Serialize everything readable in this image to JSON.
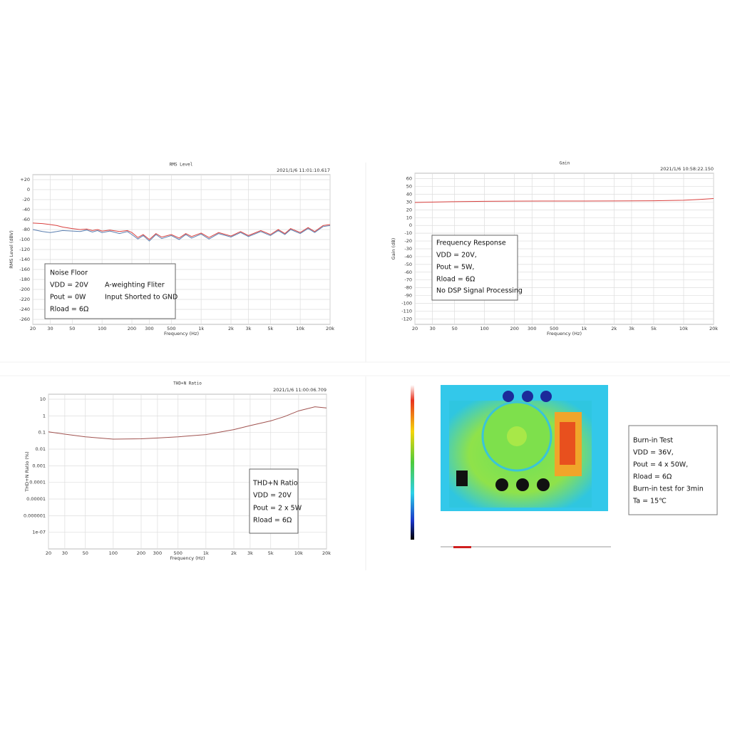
{
  "chart_data": [
    {
      "type": "line",
      "title": "RMS Level",
      "timestamp": "2021/1/6 11:01:10.617",
      "ylabel": "RMS Level (dBV)",
      "xlabel": "Frequency (Hz)",
      "xlog": true,
      "xlim": [
        20,
        20000
      ],
      "xticks": [
        20,
        30,
        50,
        100,
        200,
        300,
        500,
        {
          "value": 1000,
          "label": "1k"
        },
        {
          "value": 2000,
          "label": "2k"
        },
        {
          "value": 3000,
          "label": "3k"
        },
        {
          "value": 5000,
          "label": "5k"
        },
        {
          "value": 10000,
          "label": "10k"
        },
        {
          "value": 20000,
          "label": "20k"
        }
      ],
      "ylim": [
        -270,
        30
      ],
      "yticks": [
        {
          "value": 20,
          "label": "+20"
        },
        0,
        -20,
        -40,
        -60,
        -80,
        -100,
        -120,
        -140,
        -160,
        -180,
        -200,
        -220,
        -240,
        -260
      ],
      "grid": true,
      "x": [
        20,
        25,
        30,
        35,
        40,
        50,
        60,
        70,
        80,
        90,
        100,
        120,
        150,
        180,
        200,
        230,
        260,
        300,
        350,
        400,
        500,
        600,
        700,
        800,
        1000,
        1200,
        1500,
        2000,
        2500,
        3000,
        4000,
        5000,
        6000,
        7000,
        8000,
        10000,
        12000,
        14000,
        17000,
        20000
      ],
      "series": [
        {
          "color": "#d9413f",
          "values": [
            -67,
            -68,
            -70,
            -72,
            -75,
            -78,
            -80,
            -79,
            -82,
            -80,
            -83,
            -81,
            -84,
            -82,
            -86,
            -96,
            -90,
            -100,
            -88,
            -95,
            -90,
            -97,
            -88,
            -94,
            -87,
            -96,
            -86,
            -93,
            -84,
            -92,
            -82,
            -90,
            -80,
            -88,
            -78,
            -86,
            -76,
            -84,
            -72,
            -70
          ]
        },
        {
          "color": "#5b7fb0",
          "values": [
            -80,
            -84,
            -86,
            -84,
            -82,
            -83,
            -84,
            -81,
            -85,
            -82,
            -86,
            -83,
            -88,
            -84,
            -90,
            -99,
            -92,
            -103,
            -90,
            -98,
            -92,
            -100,
            -90,
            -97,
            -89,
            -99,
            -88,
            -95,
            -86,
            -94,
            -84,
            -92,
            -82,
            -90,
            -80,
            -88,
            -78,
            -86,
            -74,
            -72
          ]
        }
      ],
      "annotation": [
        [
          "Noise Floor"
        ],
        [
          "VDD = 20V",
          "A-weighting Fliter"
        ],
        [
          "Pout = 0W",
          "Input Shorted to GND"
        ],
        [
          "Rload = 6Ω"
        ]
      ]
    },
    {
      "type": "line",
      "title": "Gain",
      "timestamp": "2021/1/6 10:58:22.150",
      "ylabel": "Gain (dB)",
      "xlabel": "Frequency (Hz)",
      "xlog": true,
      "xlim": [
        20,
        20000
      ],
      "xticks": [
        20,
        30,
        50,
        100,
        200,
        300,
        500,
        {
          "value": 1000,
          "label": "1k"
        },
        {
          "value": 2000,
          "label": "2k"
        },
        {
          "value": 3000,
          "label": "3k"
        },
        {
          "value": 5000,
          "label": "5k"
        },
        {
          "value": 10000,
          "label": "10k"
        },
        {
          "value": 20000,
          "label": "20k"
        }
      ],
      "ylim": [
        -127,
        67
      ],
      "yticks": [
        60,
        50,
        40,
        30,
        20,
        10,
        0,
        -10,
        -20,
        -30,
        -40,
        -50,
        -60,
        -70,
        -80,
        -90,
        -100,
        -110,
        -120
      ],
      "grid": true,
      "x": [
        20,
        50,
        100,
        200,
        500,
        1000,
        2000,
        5000,
        10000,
        15000,
        20000
      ],
      "series": [
        {
          "color": "#d9413f",
          "values": [
            29.5,
            30.5,
            31,
            31.2,
            31.3,
            31.3,
            31.4,
            31.6,
            32.3,
            33.5,
            34.5
          ]
        }
      ],
      "annotation": [
        [
          "Frequency Response"
        ],
        [
          "VDD = 20V,"
        ],
        [
          "Pout = 5W,"
        ],
        [
          "Rload = 6Ω"
        ],
        [
          "No DSP Signal Processing"
        ]
      ]
    },
    {
      "type": "line",
      "title": "THD+N Ratio",
      "timestamp": "2021/1/6 11:00:06.709",
      "ylabel": "THD+N Ratio (%)",
      "xlabel": "Frequency (Hz)",
      "xlog": true,
      "xlim": [
        20,
        20000
      ],
      "ylog": true,
      "xticks": [
        20,
        30,
        50,
        100,
        200,
        300,
        500,
        {
          "value": 1000,
          "label": "1k"
        },
        {
          "value": 2000,
          "label": "2k"
        },
        {
          "value": 3000,
          "label": "3k"
        },
        {
          "value": 5000,
          "label": "5k"
        },
        {
          "value": 10000,
          "label": "10k"
        },
        {
          "value": 20000,
          "label": "20k"
        }
      ],
      "ylim": [
        1e-08,
        20
      ],
      "yticks": [
        10,
        1,
        0.1,
        0.01,
        0.001,
        0.0001,
        1e-05,
        1e-06,
        {
          "value": 1e-07,
          "label": "1e-07"
        }
      ],
      "grid": true,
      "x": [
        20,
        30,
        50,
        100,
        200,
        300,
        500,
        1000,
        2000,
        3000,
        5000,
        7000,
        10000,
        15000,
        20000
      ],
      "series": [
        {
          "color": "#a0524f",
          "values": [
            0.11,
            0.08,
            0.055,
            0.04,
            0.042,
            0.047,
            0.055,
            0.075,
            0.15,
            0.26,
            0.5,
            0.9,
            2,
            3.5,
            3
          ]
        }
      ],
      "annotation": [
        [
          "THD+N Ratio"
        ],
        [
          "VDD = 20V"
        ],
        [
          "Pout = 2 x 5W"
        ],
        [
          "Rload = 6Ω"
        ]
      ]
    }
  ],
  "burn_in": {
    "lines": [
      "Burn-in Test",
      "VDD = 36V,",
      "Pout = 4 x 50W,",
      "Rload = 6Ω",
      "Burn-in test for 3min",
      "Ta = 15℃"
    ]
  }
}
